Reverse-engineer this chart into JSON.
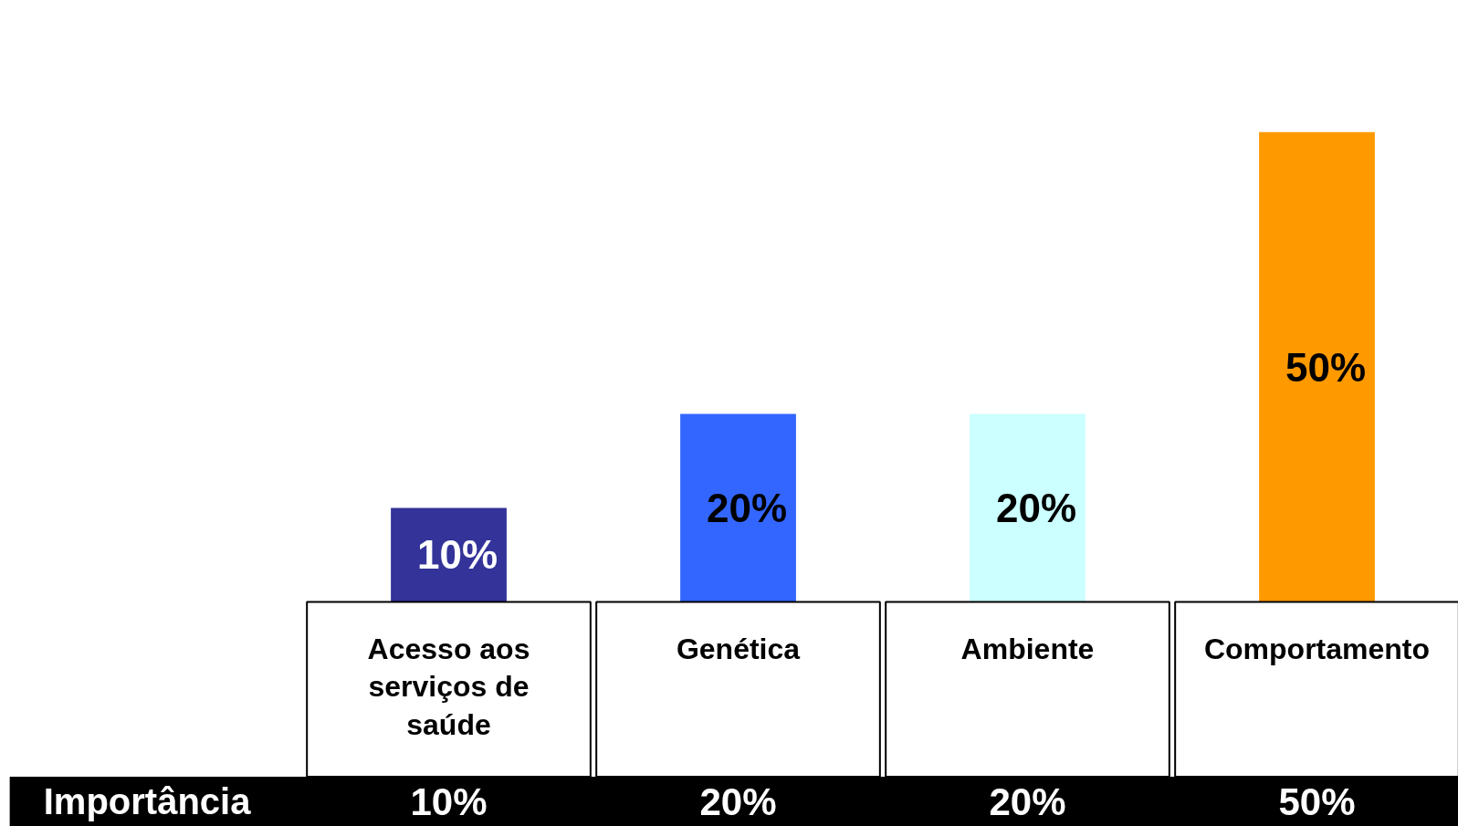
{
  "chart_data": {
    "type": "bar",
    "categories": [
      "Acesso aos serviços de saúde",
      "Genética",
      "Ambiente",
      "Comportamento"
    ],
    "values": [
      10,
      20,
      20,
      50
    ],
    "colors": [
      "#333399",
      "#3366ff",
      "#ccffff",
      "#ff9900"
    ],
    "value_labels": [
      "10%",
      "20%",
      "20%",
      "50%"
    ],
    "annotations": [
      "Importância"
    ]
  }
}
